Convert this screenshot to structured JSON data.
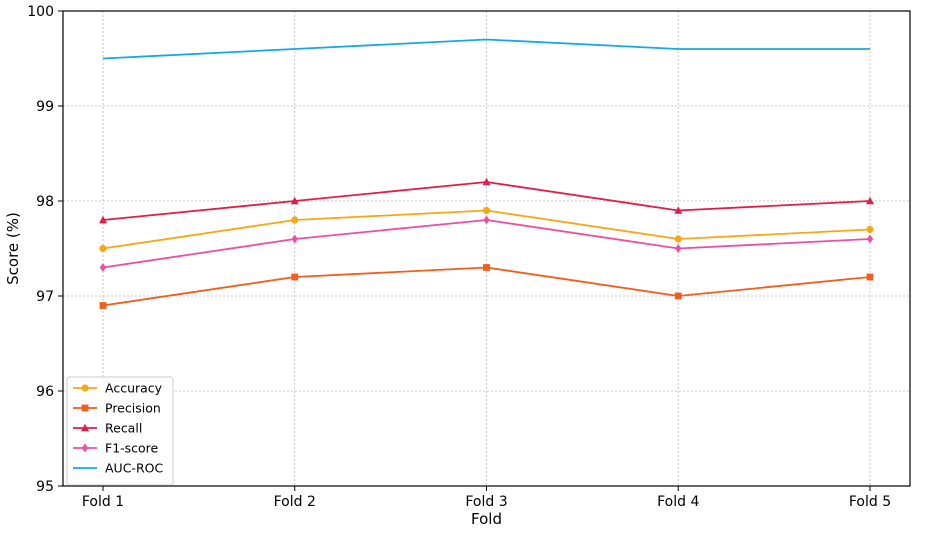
{
  "chart_data": {
    "type": "line",
    "categories": [
      "Fold 1",
      "Fold 2",
      "Fold 3",
      "Fold 4",
      "Fold 5"
    ],
    "series": [
      {
        "name": "Accuracy",
        "values": [
          97.5,
          97.8,
          97.9,
          97.6,
          97.7
        ],
        "color": "#f5a816",
        "marker": "circle"
      },
      {
        "name": "Precision",
        "values": [
          96.9,
          97.2,
          97.3,
          97.0,
          97.2
        ],
        "color": "#f05d1c",
        "marker": "square"
      },
      {
        "name": "Recall",
        "values": [
          97.8,
          98.0,
          98.2,
          97.9,
          98.0
        ],
        "color": "#e11d48",
        "marker": "triangle"
      },
      {
        "name": "F1-score",
        "values": [
          97.3,
          97.6,
          97.8,
          97.5,
          97.6
        ],
        "color": "#ec4ea5",
        "marker": "diamond"
      },
      {
        "name": "AUC-ROC",
        "values": [
          99.5,
          99.6,
          99.7,
          99.6,
          99.6
        ],
        "color": "#14a8e6",
        "marker": "none"
      }
    ],
    "xlabel": "Fold",
    "ylabel": "Score (%)",
    "ylim": [
      95,
      100
    ],
    "yticks": [
      "95",
      "96",
      "97",
      "98",
      "99",
      "100"
    ],
    "grid": true,
    "legend_position": "bottom-left"
  }
}
